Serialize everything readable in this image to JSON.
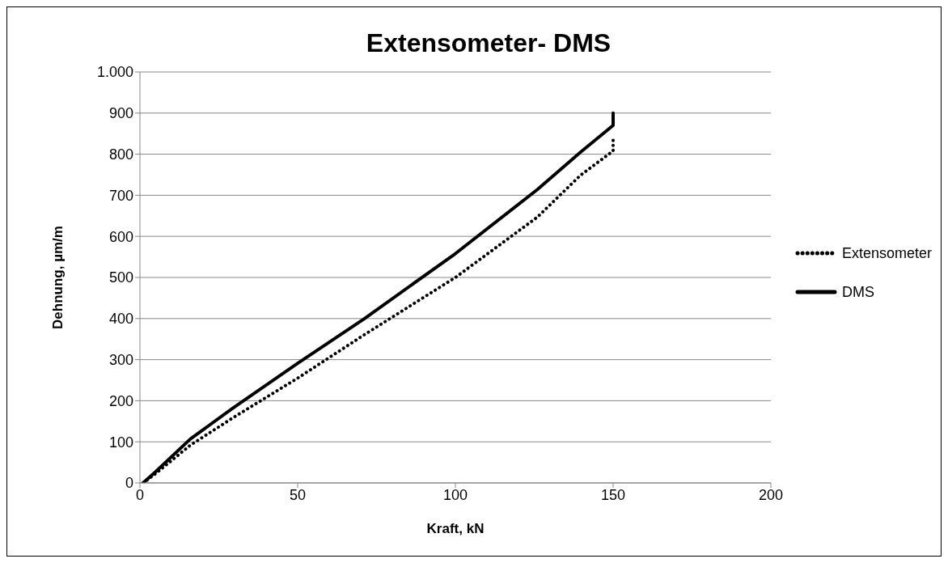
{
  "chart_data": {
    "type": "line",
    "title": "Extensometer- DMS",
    "xlabel": "Kraft, kN",
    "ylabel": "Dehnung, µm/m",
    "xlim": [
      0,
      200
    ],
    "xticks": [
      0,
      50,
      100,
      150,
      200
    ],
    "ylim": [
      0,
      1000
    ],
    "yticks": [
      0,
      100,
      200,
      300,
      400,
      500,
      600,
      700,
      800,
      900,
      {
        "value": 1000,
        "label": "1.000"
      }
    ],
    "grid": "y",
    "legend": "right",
    "marker": "none",
    "series": [
      {
        "name": "Extensometer",
        "color": "#000000",
        "line_style": "dotted",
        "x": [
          1,
          5,
          16,
          29.8,
          50,
          71,
          100,
          126,
          139.7,
          150,
          150
        ],
        "values": [
          0,
          23,
          92,
          160,
          255,
          360,
          500,
          647,
          749,
          808,
          840
        ]
      },
      {
        "name": "DMS",
        "color": "#000000",
        "line_style": "solid",
        "x": [
          1,
          5.1,
          16,
          29.8,
          50,
          71,
          100,
          126,
          139.7,
          150,
          150
        ],
        "values": [
          0,
          28,
          107,
          184,
          291,
          399,
          558,
          714,
          805,
          870,
          900
        ]
      }
    ]
  }
}
